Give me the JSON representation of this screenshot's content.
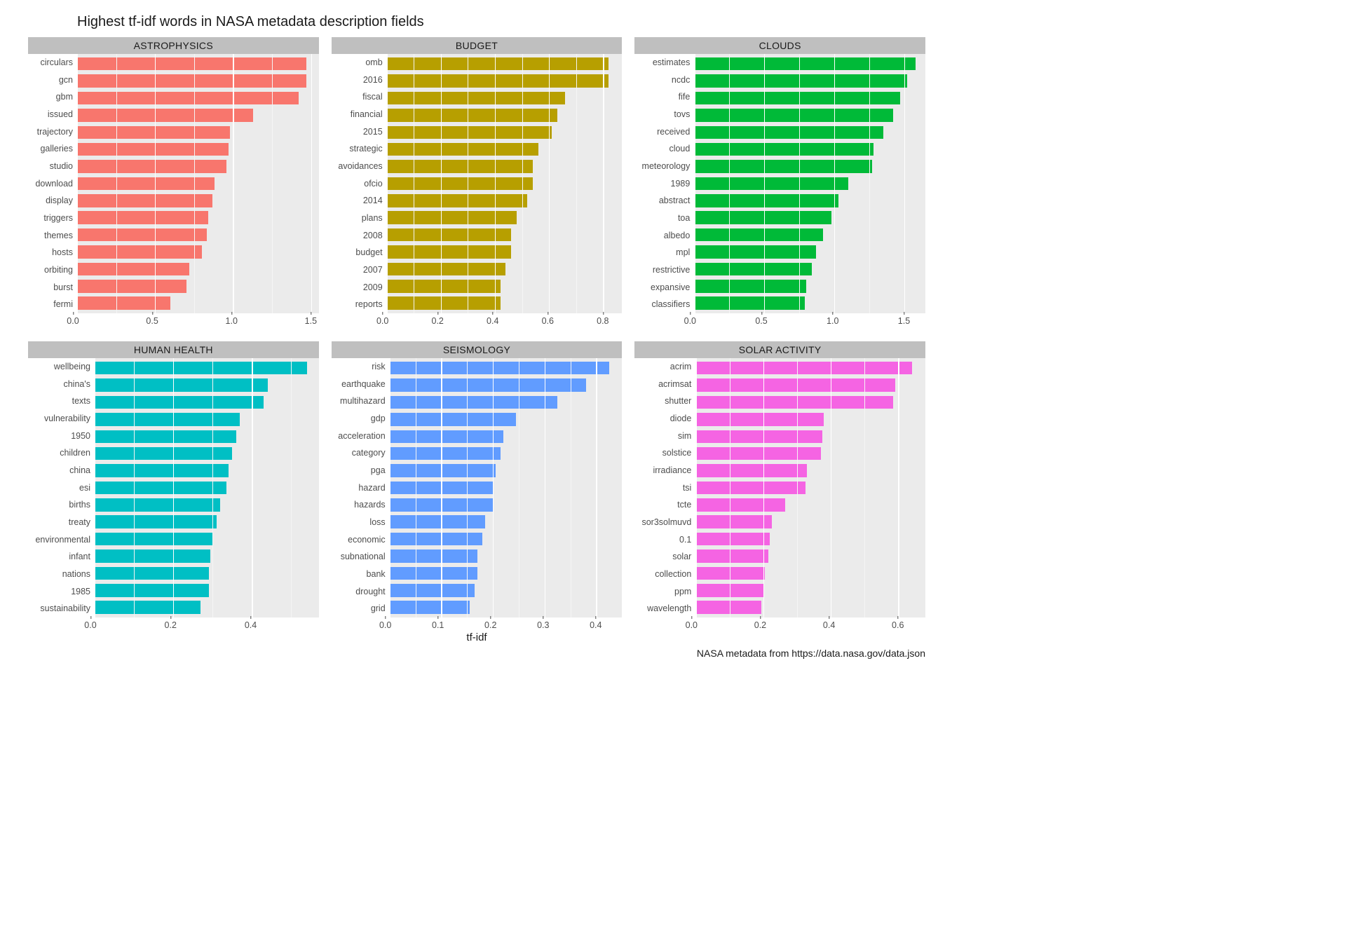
{
  "title": "Highest tf-idf words in NASA metadata description fields",
  "xlabel": "tf-idf",
  "caption": "NASA metadata from https://data.nasa.gov/data.json",
  "facet_header_bg": "#bfbfbfff",
  "facet_header_fg": "#1a1a1a",
  "panel_bg": "#ebebeb",
  "grid_major_color": "#ffffff",
  "grid_minor_color": "#f5f5f5",
  "panels": [
    {
      "label": "ASTROPHYSICS",
      "color": "#f8766d",
      "xmax": 1.55,
      "ticks": [
        0.0,
        0.5,
        1.0,
        1.5
      ],
      "minor": [
        0.25,
        0.75,
        1.25
      ],
      "items": [
        {
          "word": "circulars",
          "v": 1.47
        },
        {
          "word": "gcn",
          "v": 1.47
        },
        {
          "word": "gbm",
          "v": 1.42
        },
        {
          "word": "issued",
          "v": 1.13
        },
        {
          "word": "trajectory",
          "v": 0.98
        },
        {
          "word": "galleries",
          "v": 0.97
        },
        {
          "word": "studio",
          "v": 0.96
        },
        {
          "word": "download",
          "v": 0.88
        },
        {
          "word": "display",
          "v": 0.87
        },
        {
          "word": "triggers",
          "v": 0.84
        },
        {
          "word": "themes",
          "v": 0.83
        },
        {
          "word": "hosts",
          "v": 0.8
        },
        {
          "word": "orbiting",
          "v": 0.72
        },
        {
          "word": "burst",
          "v": 0.7
        },
        {
          "word": "fermi",
          "v": 0.6
        }
      ]
    },
    {
      "label": "BUDGET",
      "color": "#b79f00",
      "xmax": 0.87,
      "ticks": [
        0.0,
        0.2,
        0.4,
        0.6,
        0.8
      ],
      "minor": [
        0.1,
        0.3,
        0.5,
        0.7
      ],
      "items": [
        {
          "word": "omb",
          "v": 0.82
        },
        {
          "word": "2016",
          "v": 0.82
        },
        {
          "word": "fiscal",
          "v": 0.66
        },
        {
          "word": "financial",
          "v": 0.63
        },
        {
          "word": "2015",
          "v": 0.61
        },
        {
          "word": "strategic",
          "v": 0.56
        },
        {
          "word": "avoidances",
          "v": 0.54
        },
        {
          "word": "ofcio",
          "v": 0.54
        },
        {
          "word": "2014",
          "v": 0.52
        },
        {
          "word": "plans",
          "v": 0.48
        },
        {
          "word": "2008",
          "v": 0.46
        },
        {
          "word": "budget",
          "v": 0.46
        },
        {
          "word": "2007",
          "v": 0.44
        },
        {
          "word": "2009",
          "v": 0.42
        },
        {
          "word": "reports",
          "v": 0.42
        }
      ]
    },
    {
      "label": "CLOUDS",
      "color": "#00ba38",
      "xmax": 1.65,
      "ticks": [
        0.0,
        0.5,
        1.0,
        1.5
      ],
      "minor": [
        0.25,
        0.75,
        1.25
      ],
      "items": [
        {
          "word": "estimates",
          "v": 1.58
        },
        {
          "word": "ncdc",
          "v": 1.52
        },
        {
          "word": "fife",
          "v": 1.47
        },
        {
          "word": "tovs",
          "v": 1.42
        },
        {
          "word": "received",
          "v": 1.35
        },
        {
          "word": "cloud",
          "v": 1.28
        },
        {
          "word": "meteorology",
          "v": 1.27
        },
        {
          "word": "1989",
          "v": 1.1
        },
        {
          "word": "abstract",
          "v": 1.03
        },
        {
          "word": "toa",
          "v": 0.98
        },
        {
          "word": "albedo",
          "v": 0.92
        },
        {
          "word": "mpl",
          "v": 0.87
        },
        {
          "word": "restrictive",
          "v": 0.84
        },
        {
          "word": "expansive",
          "v": 0.8
        },
        {
          "word": "classifiers",
          "v": 0.79
        }
      ]
    },
    {
      "label": "HUMAN HEALTH",
      "color": "#00bfc4",
      "xmax": 0.57,
      "ticks": [
        0.0,
        0.2,
        0.4
      ],
      "minor": [
        0.1,
        0.3,
        0.5
      ],
      "items": [
        {
          "word": "wellbeing",
          "v": 0.54
        },
        {
          "word": "china's",
          "v": 0.44
        },
        {
          "word": "texts",
          "v": 0.43
        },
        {
          "word": "vulnerability",
          "v": 0.37
        },
        {
          "word": "1950",
          "v": 0.36
        },
        {
          "word": "children",
          "v": 0.35
        },
        {
          "word": "china",
          "v": 0.34
        },
        {
          "word": "esi",
          "v": 0.335
        },
        {
          "word": "births",
          "v": 0.32
        },
        {
          "word": "treaty",
          "v": 0.31
        },
        {
          "word": "environmental",
          "v": 0.3
        },
        {
          "word": "infant",
          "v": 0.295
        },
        {
          "word": "nations",
          "v": 0.29
        },
        {
          "word": "1985",
          "v": 0.29
        },
        {
          "word": "sustainability",
          "v": 0.27
        }
      ]
    },
    {
      "label": "SEISMOLOGY",
      "color": "#619cff",
      "xmax": 0.45,
      "ticks": [
        0.0,
        0.1,
        0.2,
        0.3,
        0.4
      ],
      "minor": [
        0.05,
        0.15,
        0.25,
        0.35
      ],
      "items": [
        {
          "word": "risk",
          "v": 0.425
        },
        {
          "word": "earthquake",
          "v": 0.38
        },
        {
          "word": "multihazard",
          "v": 0.325
        },
        {
          "word": "gdp",
          "v": 0.245
        },
        {
          "word": "acceleration",
          "v": 0.22
        },
        {
          "word": "category",
          "v": 0.215
        },
        {
          "word": "pga",
          "v": 0.205
        },
        {
          "word": "hazard",
          "v": 0.2
        },
        {
          "word": "hazards",
          "v": 0.2
        },
        {
          "word": "loss",
          "v": 0.185
        },
        {
          "word": "economic",
          "v": 0.18
        },
        {
          "word": "subnational",
          "v": 0.17
        },
        {
          "word": "bank",
          "v": 0.17
        },
        {
          "word": "drought",
          "v": 0.165
        },
        {
          "word": "grid",
          "v": 0.155
        }
      ]
    },
    {
      "label": "SOLAR ACTIVITY",
      "color": "#f564e3",
      "xmax": 0.68,
      "ticks": [
        0.0,
        0.2,
        0.4,
        0.6
      ],
      "minor": [
        0.1,
        0.3,
        0.5
      ],
      "items": [
        {
          "word": "acrim",
          "v": 0.64
        },
        {
          "word": "acrimsat",
          "v": 0.59
        },
        {
          "word": "shutter",
          "v": 0.585
        },
        {
          "word": "diode",
          "v": 0.38
        },
        {
          "word": "sim",
          "v": 0.375
        },
        {
          "word": "solstice",
          "v": 0.37
        },
        {
          "word": "irradiance",
          "v": 0.33
        },
        {
          "word": "tsi",
          "v": 0.325
        },
        {
          "word": "tcte",
          "v": 0.265
        },
        {
          "word": "sor3solmuvd",
          "v": 0.225
        },
        {
          "word": "0.1",
          "v": 0.22
        },
        {
          "word": "solar",
          "v": 0.215
        },
        {
          "word": "collection",
          "v": 0.205
        },
        {
          "word": "ppm",
          "v": 0.2
        },
        {
          "word": "wavelength",
          "v": 0.195
        }
      ]
    }
  ]
}
